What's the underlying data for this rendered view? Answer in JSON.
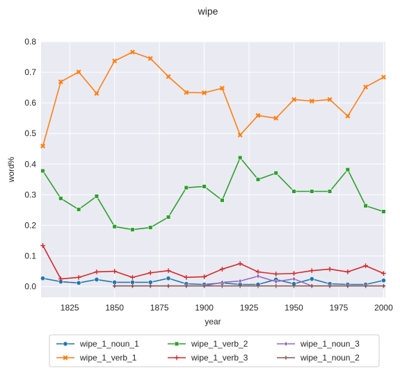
{
  "chart_data": {
    "type": "line",
    "title": "wipe",
    "xlabel": "year",
    "ylabel": "word%",
    "xlim": [
      1809,
      2001
    ],
    "ylim": [
      -0.035,
      0.8
    ],
    "x_ticks": [
      1825,
      1850,
      1875,
      1900,
      1925,
      1950,
      1975,
      2000
    ],
    "x_tick_labels": [
      "1825",
      "1850",
      "1875",
      "1900",
      "1925",
      "1950",
      "1975",
      "2000"
    ],
    "y_ticks": [
      0.0,
      0.1,
      0.2,
      0.3,
      0.4,
      0.5,
      0.6,
      0.7,
      0.8
    ],
    "y_tick_labels": [
      "0.0",
      "0.1",
      "0.2",
      "0.3",
      "0.4",
      "0.5",
      "0.6",
      "0.7",
      "0.8"
    ],
    "grid": true,
    "background": "#eaeaf2",
    "legend_position": "bottom-center",
    "series": [
      {
        "name": "wipe_1_noun_1",
        "color": "#1f77b4",
        "marker": "circle",
        "x": [
          1810,
          1820,
          1830,
          1840,
          1850,
          1860,
          1870,
          1880,
          1890,
          1900,
          1910,
          1920,
          1930,
          1940,
          1950,
          1960,
          1970,
          1980,
          1990,
          2000
        ],
        "y": [
          0.027,
          0.016,
          0.012,
          0.023,
          0.014,
          0.014,
          0.014,
          0.027,
          0.009,
          0.007,
          0.012,
          0.007,
          0.007,
          0.023,
          0.009,
          0.025,
          0.009,
          0.007,
          0.007,
          0.02
        ]
      },
      {
        "name": "wipe_1_verb_1",
        "color": "#ff7f0e",
        "marker": "x",
        "x": [
          1810,
          1820,
          1830,
          1840,
          1850,
          1860,
          1870,
          1880,
          1890,
          1900,
          1910,
          1920,
          1930,
          1940,
          1950,
          1960,
          1970,
          1980,
          1990,
          2000
        ],
        "y": [
          0.459,
          0.669,
          0.701,
          0.631,
          0.737,
          0.766,
          0.745,
          0.686,
          0.634,
          0.633,
          0.648,
          0.495,
          0.559,
          0.55,
          0.611,
          0.606,
          0.611,
          0.557,
          0.652,
          0.684
        ]
      },
      {
        "name": "wipe_1_verb_2",
        "color": "#2ca02c",
        "marker": "square",
        "x": [
          1810,
          1820,
          1830,
          1840,
          1850,
          1860,
          1870,
          1880,
          1890,
          1900,
          1910,
          1920,
          1930,
          1940,
          1950,
          1960,
          1970,
          1980,
          1990,
          2000
        ],
        "y": [
          0.378,
          0.288,
          0.252,
          0.295,
          0.196,
          0.186,
          0.193,
          0.227,
          0.323,
          0.327,
          0.282,
          0.421,
          0.35,
          0.371,
          0.311,
          0.311,
          0.311,
          0.382,
          0.264,
          0.245
        ]
      },
      {
        "name": "wipe_1_verb_3",
        "color": "#d62728",
        "marker": "plus",
        "x": [
          1810,
          1820,
          1830,
          1840,
          1850,
          1860,
          1870,
          1880,
          1890,
          1900,
          1910,
          1920,
          1930,
          1940,
          1950,
          1960,
          1970,
          1980,
          1990,
          2000
        ],
        "y": [
          0.134,
          0.025,
          0.03,
          0.048,
          0.05,
          0.03,
          0.045,
          0.052,
          0.03,
          0.032,
          0.057,
          0.075,
          0.048,
          0.041,
          0.043,
          0.052,
          0.057,
          0.048,
          0.068,
          0.043
        ]
      },
      {
        "name": "wipe_1_noun_3",
        "color": "#9467bd",
        "marker": "diamond",
        "x": [
          1850,
          1860,
          1870,
          1880,
          1890,
          1900,
          1910,
          1920,
          1930,
          1940,
          1950,
          1960,
          1970,
          1980,
          1990,
          2000
        ],
        "y": [
          0.002,
          0.002,
          0.002,
          0.002,
          0.002,
          0.002,
          0.014,
          0.018,
          0.034,
          0.016,
          0.025,
          0.002,
          0.002,
          0.002,
          0.002,
          0.002
        ]
      },
      {
        "name": "wipe_1_noun_2",
        "color": "#8c564b",
        "marker": "star",
        "x": [
          1850,
          1860,
          1870,
          1880,
          1890,
          1900,
          1910,
          1920,
          1930,
          1940,
          1950,
          1960,
          1970,
          1980,
          1990,
          2000
        ],
        "y": [
          0.002,
          0.002,
          0.002,
          0.002,
          0.002,
          0.002,
          0.002,
          0.002,
          0.002,
          0.002,
          0.002,
          0.002,
          0.002,
          0.002,
          0.002,
          0.002
        ]
      }
    ]
  }
}
